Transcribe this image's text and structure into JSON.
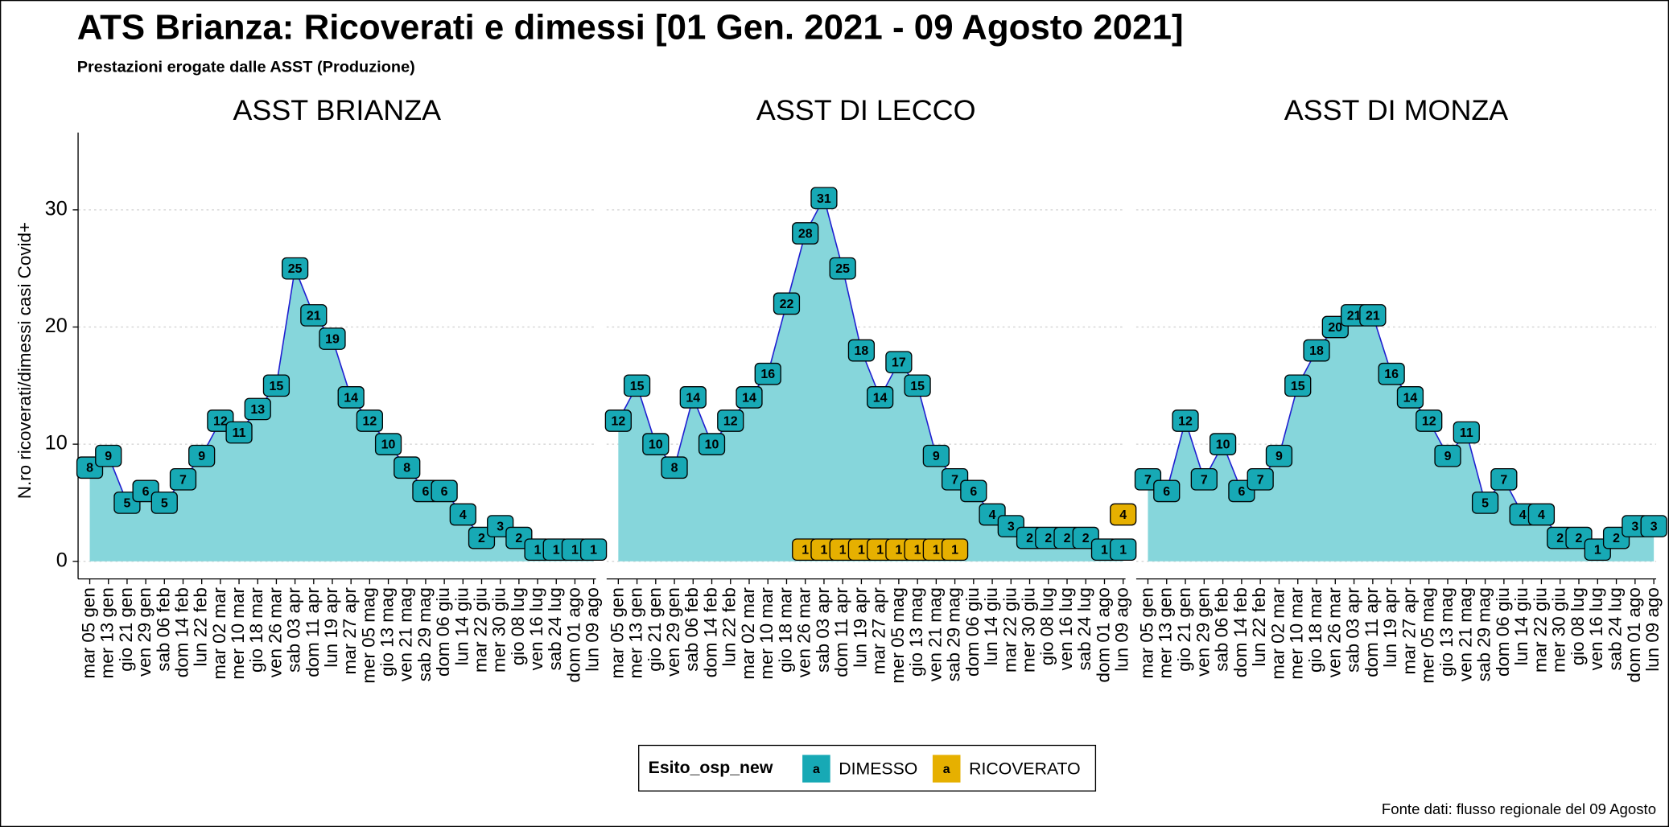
{
  "title": "ATS Brianza: Ricoverati e dimessi [01 Gen. 2021 - 09 Agosto 2021]",
  "subtitle": "Prestazioni erogate dalle ASST (Produzione)",
  "y_label": "N.ro ricoverati/dimessi casi Covid+",
  "legend_title": "Esito_osp_new",
  "legend_glyph": "a",
  "caption": "Fonte dati: flusso regionale del 09 Agosto",
  "chart_data": [
    {
      "type": "line",
      "title": "ASST BRIANZA",
      "categories": [
        "mar 05 gen",
        "mer 13 gen",
        "gio 21 gen",
        "ven 29 gen",
        "sab 06 feb",
        "dom 14 feb",
        "lun 22 feb",
        "mar 02 mar",
        "mer 10 mar",
        "gio 18 mar",
        "ven 26 mar",
        "sab 03 apr",
        "dom 11 apr",
        "lun 19 apr",
        "mar 27 apr",
        "mer 05 mag",
        "gio 13 mag",
        "ven 21 mag",
        "sab 29 mag",
        "dom 06 giu",
        "lun 14 giu",
        "mar 22 giu",
        "mer 30 giu",
        "gio 08 lug",
        "ven 16 lug",
        "sab 24 lug",
        "dom 01 ago",
        "lun 09 ago"
      ],
      "series": [
        {
          "name": "DIMESSO",
          "color": "#17a9b5",
          "values": [
            8,
            9,
            5,
            6,
            5,
            7,
            9,
            12,
            11,
            13,
            15,
            25,
            21,
            19,
            14,
            12,
            10,
            8,
            6,
            6,
            4,
            2,
            3,
            2,
            1,
            1,
            1,
            1
          ]
        }
      ],
      "ylim": [
        -1.5,
        36.6
      ],
      "yticks": [
        0,
        10,
        20,
        30
      ],
      "grid": true,
      "line_color": "#1f1fd0",
      "area_color": "#86d6db"
    },
    {
      "type": "line",
      "title": "ASST DI LECCO",
      "categories": [
        "mar 05 gen",
        "mer 13 gen",
        "gio 21 gen",
        "ven 29 gen",
        "sab 06 feb",
        "dom 14 feb",
        "lun 22 feb",
        "mar 02 mar",
        "mer 10 mar",
        "gio 18 mar",
        "ven 26 mar",
        "sab 03 apr",
        "dom 11 apr",
        "lun 19 apr",
        "mar 27 apr",
        "mer 05 mag",
        "gio 13 mag",
        "ven 21 mag",
        "sab 29 mag",
        "dom 06 giu",
        "lun 14 giu",
        "mar 22 giu",
        "mer 30 giu",
        "gio 08 lug",
        "ven 16 lug",
        "sab 24 lug",
        "dom 01 ago",
        "lun 09 ago"
      ],
      "series": [
        {
          "name": "DIMESSO",
          "color": "#17a9b5",
          "values": [
            12,
            15,
            10,
            8,
            14,
            10,
            12,
            14,
            16,
            22,
            28,
            31,
            25,
            18,
            14,
            17,
            15,
            9,
            7,
            6,
            4,
            3,
            2,
            2,
            2,
            2,
            1,
            1
          ]
        },
        {
          "name": "RICOVERATO",
          "color": "#e6b000",
          "values": [
            null,
            null,
            null,
            null,
            null,
            null,
            null,
            null,
            null,
            null,
            1,
            1,
            1,
            1,
            1,
            1,
            1,
            1,
            1,
            null,
            null,
            null,
            null,
            null,
            null,
            null,
            null,
            4
          ]
        }
      ],
      "ylim": [
        -1.5,
        36.6
      ],
      "yticks": [
        0,
        10,
        20,
        30
      ],
      "grid": true,
      "line_color": "#1f1fd0",
      "area_color": "#86d6db"
    },
    {
      "type": "line",
      "title": "ASST DI MONZA",
      "categories": [
        "mar 05 gen",
        "mer 13 gen",
        "gio 21 gen",
        "ven 29 gen",
        "sab 06 feb",
        "dom 14 feb",
        "lun 22 feb",
        "mar 02 mar",
        "mer 10 mar",
        "gio 18 mar",
        "ven 26 mar",
        "sab 03 apr",
        "dom 11 apr",
        "lun 19 apr",
        "mar 27 apr",
        "mer 05 mag",
        "gio 13 mag",
        "ven 21 mag",
        "sab 29 mag",
        "dom 06 giu",
        "lun 14 giu",
        "mar 22 giu",
        "mer 30 giu",
        "gio 08 lug",
        "ven 16 lug",
        "sab 24 lug",
        "dom 01 ago",
        "lun 09 ago"
      ],
      "series": [
        {
          "name": "DIMESSO",
          "color": "#17a9b5",
          "values": [
            7,
            6,
            12,
            7,
            10,
            6,
            7,
            9,
            15,
            18,
            20,
            21,
            21,
            16,
            14,
            12,
            9,
            11,
            5,
            7,
            4,
            4,
            2,
            2,
            1,
            2,
            3,
            3
          ]
        }
      ],
      "ylim": [
        -1.5,
        36.6
      ],
      "yticks": [
        0,
        10,
        20,
        30
      ],
      "grid": true,
      "line_color": "#1f1fd0",
      "area_color": "#86d6db"
    }
  ]
}
